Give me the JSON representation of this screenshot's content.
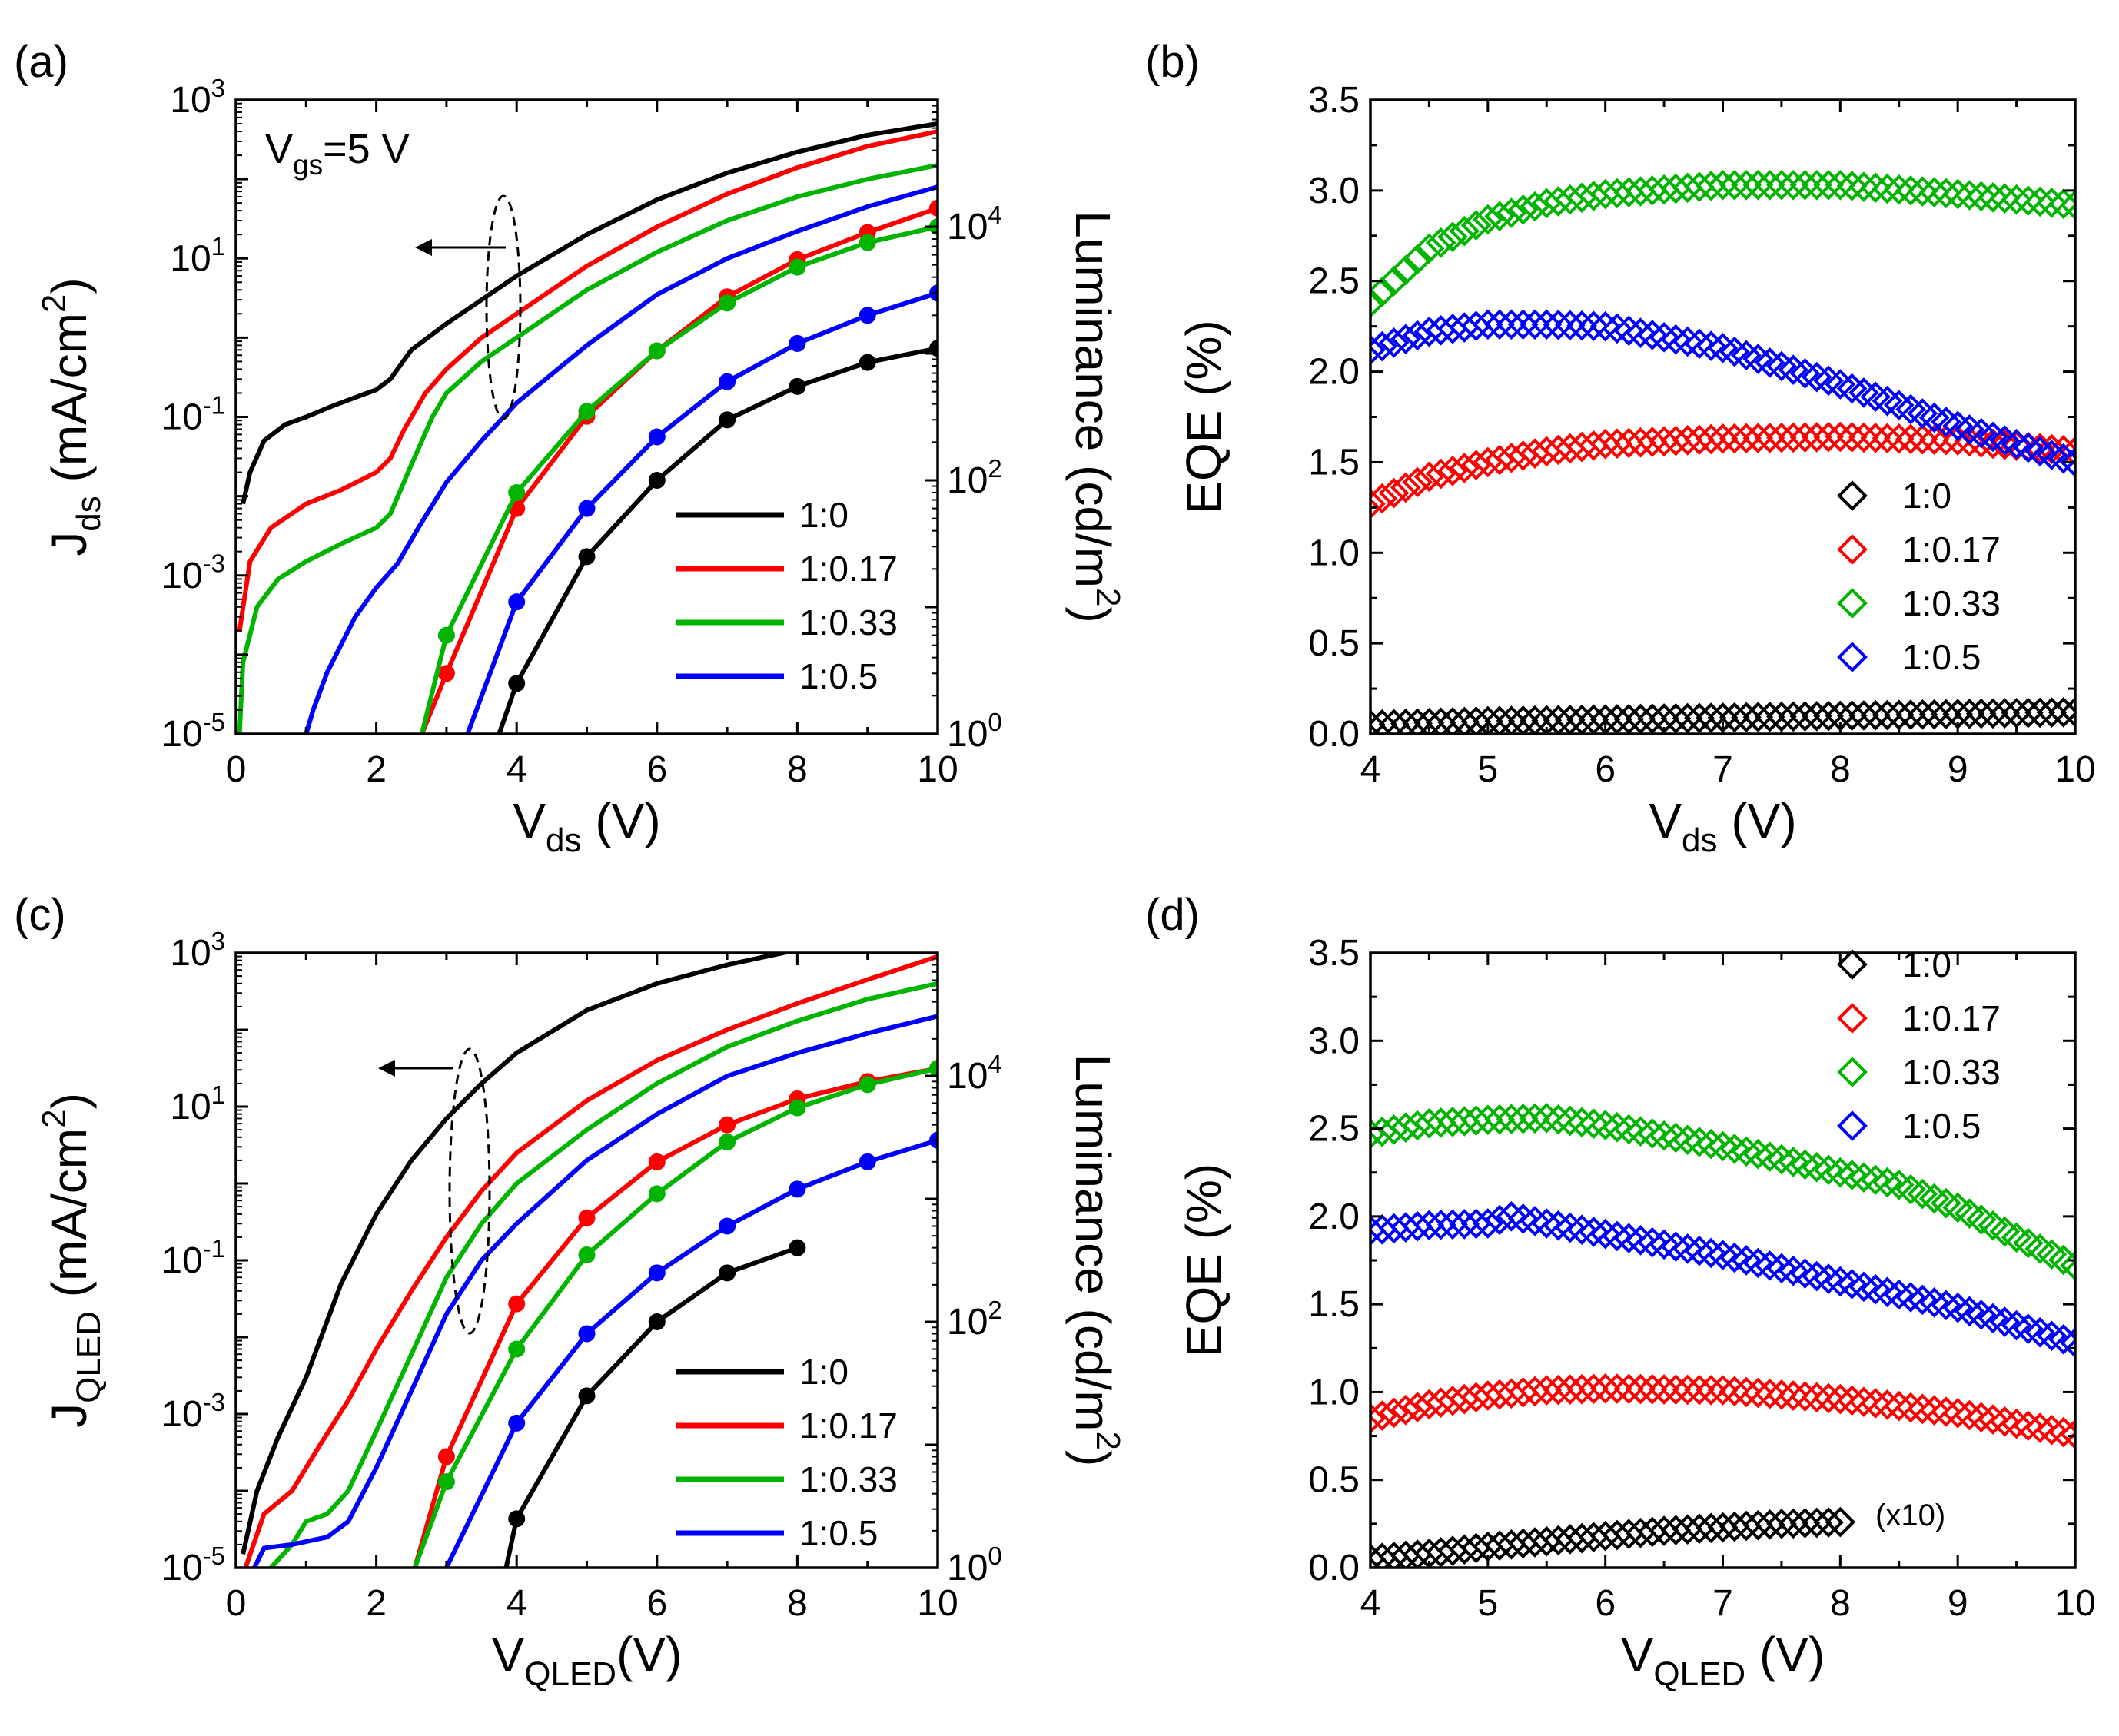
{
  "chart_data": [
    {
      "panel": "(a)",
      "type": "line",
      "annotation": "V<sub>gs</sub>=5 V",
      "xlabel": "V<sub>ds</sub> (V)",
      "ylabel_left": "J<sub>ds</sub> (mA/cm<sup>2</sup>)",
      "ylabel_right": "Luminance (cd/m<sup>2</sup>)",
      "xlim": [
        0,
        10
      ],
      "ylim_left": [
        1e-05,
        1000
      ],
      "ylim_right": [
        1,
        100000
      ],
      "yscale": "log",
      "x_ticks": [
        "0",
        "2",
        "4",
        "6",
        "8",
        "10"
      ],
      "y_ticks_left": [
        "10<sup>-5</sup>",
        "10<sup>-3</sup>",
        "10<sup>-1</sup>",
        "10<sup>1</sup>",
        "10<sup>3</sup>"
      ],
      "y_ticks_right": [
        "10<sup>0</sup>",
        "10<sup>2</sup>",
        "10<sup>4</sup>"
      ],
      "legend": [
        "1:0",
        "1:0.17",
        "1:0.33",
        "1:0.5"
      ],
      "legend_position": "bottom-right",
      "grid": false,
      "series_current_density": [
        {
          "name": "1:0",
          "color": "#000000",
          "x": [
            0.1,
            0.2,
            0.4,
            0.7,
            1.0,
            1.4,
            1.8,
            2.0,
            2.2,
            2.5,
            3.0,
            3.5,
            4.0,
            5.0,
            6.0,
            7.0,
            8.0,
            9.0,
            10.0
          ],
          "y": [
            0.008,
            0.02,
            0.05,
            0.08,
            0.1,
            0.14,
            0.19,
            0.22,
            0.3,
            0.7,
            1.5,
            3.0,
            6.0,
            20,
            55,
            120,
            220,
            360,
            500
          ]
        },
        {
          "name": "1:0.17",
          "color": "#ff0000",
          "x": [
            0.05,
            0.2,
            0.5,
            1.0,
            1.5,
            2.0,
            2.2,
            2.4,
            2.7,
            3.0,
            3.5,
            4.0,
            5.0,
            6.0,
            7.0,
            8.0,
            9.0,
            10.0
          ],
          "y": [
            0.0002,
            0.0015,
            0.004,
            0.008,
            0.012,
            0.02,
            0.03,
            0.07,
            0.2,
            0.4,
            1.0,
            2.0,
            8.0,
            25,
            65,
            140,
            260,
            400
          ]
        },
        {
          "name": "1:0.33",
          "color": "#00b400",
          "x": [
            0.05,
            0.1,
            0.3,
            0.6,
            1.0,
            1.5,
            2.0,
            2.2,
            2.5,
            2.8,
            3.0,
            3.5,
            4.0,
            5.0,
            6.0,
            7.0,
            8.0,
            9.0,
            10.0
          ],
          "y": [
            1e-05,
            8e-05,
            0.0004,
            0.0009,
            0.0015,
            0.0025,
            0.004,
            0.006,
            0.025,
            0.1,
            0.2,
            0.5,
            1.0,
            4.0,
            12,
            30,
            60,
            100,
            150
          ]
        },
        {
          "name": "1:0.5",
          "color": "#0000ff",
          "x": [
            1.0,
            1.1,
            1.3,
            1.7,
            2.0,
            2.3,
            2.6,
            3.0,
            3.5,
            4.0,
            5.0,
            6.0,
            7.0,
            8.0,
            9.0,
            10.0
          ],
          "y": [
            1e-05,
            2e-05,
            6e-05,
            0.0003,
            0.0007,
            0.0014,
            0.004,
            0.015,
            0.05,
            0.15,
            0.8,
            3.5,
            10,
            22,
            45,
            80
          ]
        }
      ],
      "series_luminance": [
        {
          "name": "1:0",
          "color": "#000000",
          "x": [
            3.75,
            4.0,
            5.0,
            6.0,
            7.0,
            8.0,
            9.0,
            10.0
          ],
          "y": [
            1.0,
            2.5,
            25,
            100,
            300,
            550,
            850,
            1100
          ]
        },
        {
          "name": "1:0.17",
          "color": "#ff0000",
          "x": [
            2.65,
            3.0,
            4.0,
            5.0,
            6.0,
            7.0,
            8.0,
            9.0,
            10.0
          ],
          "y": [
            1.0,
            3.0,
            60,
            320,
            1050,
            2800,
            5500,
            9000,
            14000
          ]
        },
        {
          "name": "1:0.33",
          "color": "#00b400",
          "x": [
            2.65,
            3.0,
            4.0,
            5.0,
            6.0,
            7.0,
            8.0,
            9.0,
            10.0
          ],
          "y": [
            1.0,
            6.0,
            80,
            350,
            1050,
            2500,
            4800,
            7500,
            10000
          ]
        },
        {
          "name": "1:0.5",
          "color": "#0000ff",
          "x": [
            3.3,
            4.0,
            5.0,
            6.0,
            7.0,
            8.0,
            9.0,
            10.0
          ],
          "y": [
            1.0,
            11,
            60,
            220,
            600,
            1200,
            2000,
            3000
          ]
        }
      ]
    },
    {
      "panel": "(b)",
      "type": "scatter",
      "xlabel": "V<sub>ds</sub> (V)",
      "ylabel": "EQE (%)",
      "xlim": [
        4,
        10
      ],
      "ylim": [
        0,
        3.5
      ],
      "x_ticks": [
        "4",
        "5",
        "6",
        "7",
        "8",
        "9",
        "10"
      ],
      "y_ticks": [
        "0.0",
        "0.5",
        "1.0",
        "1.5",
        "2.0",
        "2.5",
        "3.0",
        "3.5"
      ],
      "legend": [
        "1:0",
        "1:0.17",
        "1:0.33",
        "1:0.5"
      ],
      "legend_position": "bottom-right",
      "marker": "diamond-open",
      "grid": false,
      "series": [
        {
          "name": "1:0",
          "color": "#000000",
          "x": [
            4,
            5,
            6,
            7,
            8,
            9,
            10
          ],
          "y": [
            0.05,
            0.07,
            0.08,
            0.09,
            0.1,
            0.11,
            0.12
          ]
        },
        {
          "name": "1:0.17",
          "color": "#ff0000",
          "x": [
            4,
            4.5,
            5,
            5.5,
            6,
            7,
            8,
            9,
            10
          ],
          "y": [
            1.27,
            1.42,
            1.5,
            1.56,
            1.6,
            1.63,
            1.64,
            1.62,
            1.56
          ]
        },
        {
          "name": "1:0.33",
          "color": "#00b400",
          "x": [
            4,
            4.5,
            5,
            5.5,
            6,
            7,
            8,
            9,
            10
          ],
          "y": [
            2.38,
            2.68,
            2.84,
            2.93,
            2.98,
            3.03,
            3.03,
            2.98,
            2.92
          ]
        },
        {
          "name": "1:0.5",
          "color": "#0000ff",
          "x": [
            4,
            4.5,
            5,
            5.5,
            6,
            7,
            8,
            9,
            10
          ],
          "y": [
            2.12,
            2.22,
            2.26,
            2.26,
            2.25,
            2.13,
            1.93,
            1.7,
            1.5
          ]
        }
      ]
    },
    {
      "panel": "(c)",
      "type": "line",
      "xlabel": "V<sub>QLED</sub>(V)",
      "ylabel_left": "J<sub>QLED</sub> (mA/cm<sup>2</sup>)",
      "ylabel_right": "Luminance (cd/m<sup>2</sup>)",
      "xlim": [
        0,
        10
      ],
      "ylim_left": [
        1e-05,
        1000
      ],
      "ylim_right": [
        1,
        100000
      ],
      "yscale": "log",
      "x_ticks": [
        "0",
        "2",
        "4",
        "6",
        "8",
        "10"
      ],
      "y_ticks_left": [
        "10<sup>-5</sup>",
        "10<sup>-3</sup>",
        "10<sup>-1</sup>",
        "10<sup>1</sup>",
        "10<sup>3</sup>"
      ],
      "y_ticks_right": [
        "10<sup>0</sup>",
        "10<sup>2</sup>",
        "10<sup>4</sup>"
      ],
      "legend": [
        "1:0",
        "1:0.17",
        "1:0.33",
        "1:0.5"
      ],
      "legend_position": "bottom-right",
      "grid": false,
      "series_current_density": [
        {
          "name": "1:0",
          "color": "#000000",
          "x": [
            0.1,
            0.3,
            0.6,
            1.0,
            1.5,
            2.0,
            2.5,
            3.0,
            3.5,
            4.0,
            5.0,
            6.0,
            7.0,
            8.0
          ],
          "y": [
            1.5e-05,
            0.0001,
            0.0005,
            0.003,
            0.05,
            0.4,
            2.0,
            7.0,
            20,
            50,
            180,
            400,
            700,
            1100
          ]
        },
        {
          "name": "1:0.17",
          "color": "#ff0000",
          "x": [
            0.1,
            0.4,
            0.8,
            1.2,
            1.6,
            2.0,
            2.5,
            3.0,
            3.5,
            4.0,
            5.0,
            6.0,
            7.0,
            8.0,
            9.0,
            10.0
          ],
          "y": [
            8e-06,
            5e-05,
            0.0001,
            0.0004,
            0.0015,
            0.007,
            0.04,
            0.2,
            0.8,
            2.5,
            12,
            40,
            100,
            220,
            450,
            900
          ]
        },
        {
          "name": "1:0.33",
          "color": "#00b400",
          "x": [
            0.2,
            0.5,
            0.8,
            1.0,
            1.3,
            1.6,
            2.0,
            2.5,
            3.0,
            3.5,
            4.0,
            5.0,
            6.0,
            7.0,
            8.0,
            9.0,
            10.0
          ],
          "y": [
            6e-06,
            1e-05,
            2e-05,
            4e-05,
            5e-05,
            0.0001,
            0.0006,
            0.006,
            0.06,
            0.3,
            1.0,
            5.0,
            20,
            60,
            130,
            250,
            400
          ]
        },
        {
          "name": "1:0.5",
          "color": "#0000ff",
          "x": [
            0.1,
            0.4,
            0.8,
            1.3,
            1.6,
            2.0,
            2.5,
            3.0,
            3.5,
            4.0,
            5.0,
            6.0,
            7.0,
            8.0,
            9.0,
            10.0
          ],
          "y": [
            5e-06,
            1.8e-05,
            2e-05,
            2.5e-05,
            4e-05,
            0.0002,
            0.002,
            0.02,
            0.1,
            0.3,
            2.0,
            8.0,
            25,
            50,
            90,
            150
          ]
        }
      ],
      "series_luminance": [
        {
          "name": "1:0",
          "color": "#000000",
          "x": [
            3.85,
            4.0,
            5.0,
            6.0,
            7.0,
            8.0
          ],
          "y": [
            1.0,
            2.5,
            25,
            100,
            250,
            400
          ]
        },
        {
          "name": "1:0.17",
          "color": "#ff0000",
          "x": [
            2.55,
            3.0,
            4.0,
            5.0,
            6.0,
            7.0,
            8.0,
            9.0,
            10.0
          ],
          "y": [
            1.0,
            8.0,
            140,
            700,
            2000,
            4000,
            6500,
            9000,
            11500
          ]
        },
        {
          "name": "1:0.33",
          "color": "#00b400",
          "x": [
            2.55,
            3.0,
            4.0,
            5.0,
            6.0,
            7.0,
            8.0,
            9.0,
            10.0
          ],
          "y": [
            1.0,
            5.0,
            60,
            350,
            1100,
            2900,
            5500,
            8500,
            11500
          ]
        },
        {
          "name": "1:0.5",
          "color": "#0000ff",
          "x": [
            3.0,
            4.0,
            5.0,
            6.0,
            7.0,
            8.0,
            9.0,
            10.0
          ],
          "y": [
            1.0,
            15,
            80,
            250,
            600,
            1200,
            2000,
            3000
          ]
        }
      ]
    },
    {
      "panel": "(d)",
      "type": "scatter",
      "xlabel": "V<sub>QLED</sub> (V)",
      "ylabel": "EQE (%)",
      "xlim": [
        4,
        10
      ],
      "ylim": [
        0,
        3.5
      ],
      "x_ticks": [
        "4",
        "5",
        "6",
        "7",
        "8",
        "9",
        "10"
      ],
      "y_ticks": [
        "0.0",
        "0.5",
        "1.0",
        "1.5",
        "2.0",
        "2.5",
        "3.0",
        "3.5"
      ],
      "legend": [
        "1:0",
        "1:0.17",
        "1:0.33",
        "1:0.5"
      ],
      "legend_position": "top-right",
      "marker": "diamond-open",
      "annotation": "(x10)",
      "grid": false,
      "series": [
        {
          "name": "1:0",
          "color": "#000000",
          "x": [
            4,
            4.5,
            5,
            5.5,
            6,
            6.5,
            7,
            7.5,
            8
          ],
          "y": [
            0.05,
            0.08,
            0.12,
            0.15,
            0.18,
            0.21,
            0.23,
            0.25,
            0.26
          ]
        },
        {
          "name": "1:0.17",
          "color": "#ff0000",
          "x": [
            4,
            4.5,
            5,
            5.5,
            6,
            7,
            8,
            9,
            10
          ],
          "y": [
            0.85,
            0.93,
            0.98,
            1.01,
            1.02,
            1.01,
            0.96,
            0.88,
            0.76
          ]
        },
        {
          "name": "1:0.33",
          "color": "#00b400",
          "x": [
            4,
            4.5,
            5,
            5.5,
            6,
            7,
            8,
            8.5,
            9,
            9.5,
            10
          ],
          "y": [
            2.47,
            2.53,
            2.55,
            2.56,
            2.52,
            2.4,
            2.25,
            2.18,
            2.05,
            1.88,
            1.72
          ]
        },
        {
          "name": "1:0.5",
          "color": "#0000ff",
          "x": [
            4,
            4.5,
            5,
            5.2,
            5.5,
            6,
            7,
            8,
            9,
            10
          ],
          "y": [
            1.92,
            1.95,
            1.96,
            2.0,
            1.96,
            1.9,
            1.78,
            1.63,
            1.48,
            1.28
          ]
        }
      ]
    }
  ]
}
